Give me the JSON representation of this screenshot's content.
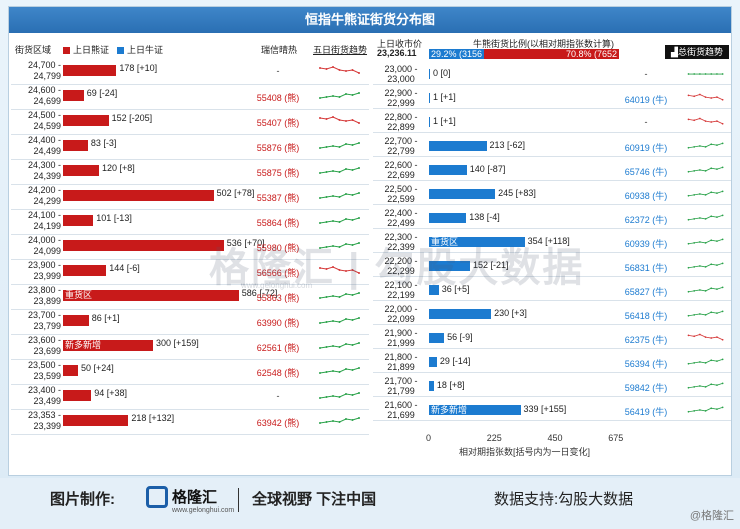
{
  "title": "恒指牛熊证街货分布图",
  "left_header": {
    "col_range": "街货区域",
    "legend_bear": "上日熊证",
    "legend_bull": "上日牛证",
    "col_recovery": "瑞信晴热",
    "col_trend": "五日街货趋势"
  },
  "right_header": {
    "last_close_label": "上日收市价",
    "last_close_value": "23,236.11",
    "ratio_label": "牛熊街货比例(以相对期指张数计算)",
    "bull_ratio": "29.2% (3156",
    "bear_ratio": "70.8% (7652",
    "total_button": "总街货趋势"
  },
  "colors": {
    "bear": "#c81a1a",
    "bull": "#1c7bd0"
  },
  "bear_rows": [
    {
      "range": [
        "24,700 -",
        "24,799"
      ],
      "value": 178,
      "label": "178 [+10]",
      "rec": "-",
      "trend": "down"
    },
    {
      "range": [
        "24,600 -",
        "24,699"
      ],
      "value": 69,
      "label": "69 [-24]",
      "rec": "55408 (熊)",
      "trend": "up"
    },
    {
      "range": [
        "24,500 -",
        "24,599"
      ],
      "value": 152,
      "label": "152 [-205]",
      "rec": "55407 (熊)",
      "trend": "down"
    },
    {
      "range": [
        "24,400 -",
        "24,499"
      ],
      "value": 83,
      "label": "83 [-3]",
      "rec": "55876 (熊)",
      "trend": "up"
    },
    {
      "range": [
        "24,300 -",
        "24,399"
      ],
      "value": 120,
      "label": "120 [+8]",
      "rec": "55875 (熊)",
      "trend": "up"
    },
    {
      "range": [
        "24,200 -",
        "24,299"
      ],
      "value": 502,
      "label": "502 [+78]",
      "rec": "55387 (熊)",
      "trend": "up"
    },
    {
      "range": [
        "24,100 -",
        "24,199"
      ],
      "value": 101,
      "label": "101 [-13]",
      "rec": "55864 (熊)",
      "trend": "up"
    },
    {
      "range": [
        "24,000 -",
        "24,099"
      ],
      "value": 536,
      "label": "536 [+70]",
      "rec": "55980 (熊)",
      "trend": "up"
    },
    {
      "range": [
        "23,900 -",
        "23,999"
      ],
      "value": 144,
      "label": "144 [-6]",
      "rec": "56566 (熊)",
      "trend": "down"
    },
    {
      "range": [
        "23,800 -",
        "23,899"
      ],
      "value": 586,
      "label": "586 [-72]",
      "inner": "重货区",
      "rec": "55863 (熊)",
      "trend": "up"
    },
    {
      "range": [
        "23,700 -",
        "23,799"
      ],
      "value": 86,
      "label": "86 [+1]",
      "rec": "63990 (熊)",
      "trend": "up"
    },
    {
      "range": [
        "23,600 -",
        "23,699"
      ],
      "value": 300,
      "label": "300 [+159]",
      "inner": "新多新增",
      "rec": "62561 (熊)",
      "trend": "up"
    },
    {
      "range": [
        "23,500 -",
        "23,599"
      ],
      "value": 50,
      "label": "50 [+24]",
      "rec": "62548 (熊)",
      "trend": "up"
    },
    {
      "range": [
        "23,400 -",
        "23,499"
      ],
      "value": 94,
      "label": "94 [+38]",
      "rec": "-",
      "trend": "up"
    },
    {
      "range": [
        "23,353 -",
        "23,399"
      ],
      "value": 218,
      "label": "218 [+132]",
      "rec": "63942 (熊)",
      "trend": "up"
    }
  ],
  "bull_rows": [
    {
      "range": [
        "23,000 -",
        "23,000"
      ],
      "value": 0,
      "label": "0 [0]",
      "rec": "-",
      "trend": "flat"
    },
    {
      "range": [
        "22,900 -",
        "22,999"
      ],
      "value": 1,
      "label": "1 [+1]",
      "rec": "64019 (牛)",
      "trend": "down"
    },
    {
      "range": [
        "22,800 -",
        "22,899"
      ],
      "value": 1,
      "label": "1 [+1]",
      "rec": "-",
      "trend": "down"
    },
    {
      "range": [
        "22,700 -",
        "22,799"
      ],
      "value": 213,
      "label": "213 [-62]",
      "rec": "60919 (牛)",
      "trend": "up"
    },
    {
      "range": [
        "22,600 -",
        "22,699"
      ],
      "value": 140,
      "label": "140 [-87]",
      "rec": "65746 (牛)",
      "trend": "up"
    },
    {
      "range": [
        "22,500 -",
        "22,599"
      ],
      "value": 245,
      "label": "245 [+83]",
      "rec": "60938 (牛)",
      "trend": "up"
    },
    {
      "range": [
        "22,400 -",
        "22,499"
      ],
      "value": 138,
      "label": "138 [-4]",
      "rec": "62372 (牛)",
      "trend": "up"
    },
    {
      "range": [
        "22,300 -",
        "22,399"
      ],
      "value": 354,
      "label": "354 [+118]",
      "inner": "重货区",
      "rec": "60939 (牛)",
      "trend": "up"
    },
    {
      "range": [
        "22,200 -",
        "22,299"
      ],
      "value": 152,
      "label": "152 [-21]",
      "rec": "56831 (牛)",
      "trend": "up"
    },
    {
      "range": [
        "22,100 -",
        "22,199"
      ],
      "value": 36,
      "label": "36 [+5]",
      "rec": "65827 (牛)",
      "trend": "up"
    },
    {
      "range": [
        "22,000 -",
        "22,099"
      ],
      "value": 230,
      "label": "230 [+3]",
      "rec": "56418 (牛)",
      "trend": "up"
    },
    {
      "range": [
        "21,900 -",
        "21,999"
      ],
      "value": 56,
      "label": "56 [-9]",
      "rec": "62375 (牛)",
      "trend": "down"
    },
    {
      "range": [
        "21,800 -",
        "21,899"
      ],
      "value": 29,
      "label": "29 [-14]",
      "rec": "56394 (牛)",
      "trend": "up"
    },
    {
      "range": [
        "21,700 -",
        "21,799"
      ],
      "value": 18,
      "label": "18 [+8]",
      "rec": "59842 (牛)",
      "trend": "up"
    },
    {
      "range": [
        "21,600 -",
        "21,699"
      ],
      "value": 339,
      "label": "339 [+155]",
      "inner": "新多新增",
      "rec": "56419 (牛)",
      "trend": "up"
    }
  ],
  "axis": {
    "ticks": [
      "0",
      "225",
      "450",
      "675"
    ],
    "label": "相对期指张数[括号内为一日变化]"
  },
  "watermark": "格隆汇 | 勾股大数据",
  "watermark_url": "www.gelonghui.com",
  "footer": {
    "made_by": "图片制作:",
    "brand": "格隆汇",
    "brand_url": "www.gelonghui.com",
    "slogan": "全球视野 下注中国",
    "support": "数据支持:勾股大数据"
  },
  "credit": "@格隆汇"
}
